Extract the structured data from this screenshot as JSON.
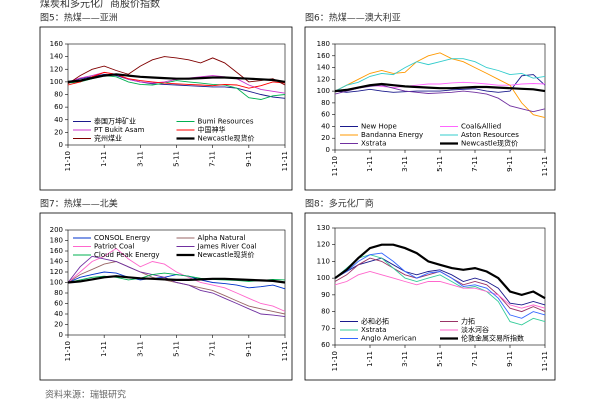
{
  "header": {
    "title": "煤炭和多元化厂商股价指数"
  },
  "footer": {
    "source": "资料来源：瑞银研究"
  },
  "chart_data": [
    {
      "type": "line",
      "title": "图5：热煤——亚洲",
      "legend": "lower",
      "categories": [
        "11-10",
        null,
        null,
        "1-11",
        null,
        null,
        "3-11",
        null,
        null,
        "5-11",
        null,
        null,
        "7-11",
        null,
        null,
        "9-11",
        null,
        null,
        "11-11"
      ],
      "ylim": [
        0,
        160
      ],
      "yticks": [
        0,
        20,
        40,
        60,
        80,
        100,
        120,
        140,
        160
      ],
      "series": [
        {
          "name": "泰国万坤矿业",
          "color": "#1a1a8c",
          "values": [
            100,
            105,
            108,
            112,
            110,
            104,
            100,
            97,
            96,
            95,
            94,
            93,
            92,
            92,
            90,
            85,
            80,
            76,
            74
          ]
        },
        {
          "name": "Bumi Resources",
          "color": "#00b050",
          "values": [
            98,
            100,
            105,
            110,
            108,
            100,
            96,
            95,
            98,
            102,
            100,
            98,
            96,
            95,
            90,
            75,
            72,
            78,
            80
          ]
        },
        {
          "name": "PT Bukit Asam",
          "color": "#cc33cc",
          "values": [
            100,
            106,
            110,
            115,
            112,
            104,
            100,
            98,
            100,
            104,
            106,
            108,
            110,
            108,
            105,
            95,
            88,
            85,
            82
          ]
        },
        {
          "name": "中国神华",
          "color": "#ff0000",
          "values": [
            95,
            100,
            108,
            115,
            112,
            105,
            102,
            100,
            98,
            97,
            96,
            95,
            94,
            96,
            95,
            90,
            94,
            100,
            98
          ]
        },
        {
          "name": "兖州煤业",
          "color": "#800000",
          "values": [
            97,
            110,
            120,
            125,
            118,
            112,
            125,
            135,
            140,
            138,
            135,
            130,
            138,
            130,
            115,
            100,
            102,
            105,
            95
          ]
        },
        {
          "name": "Newcastle现货价",
          "color": "#000000",
          "values": [
            100,
            102,
            106,
            110,
            112,
            110,
            108,
            107,
            106,
            105,
            105,
            106,
            107,
            107,
            106,
            105,
            104,
            103,
            100
          ]
        }
      ]
    },
    {
      "type": "line",
      "title": "图6：热煤——澳大利亚",
      "legend": "lower",
      "categories": [
        "11-10",
        null,
        null,
        "1-11",
        null,
        null,
        "3-11",
        null,
        null,
        "5-11",
        null,
        null,
        "7-11",
        null,
        null,
        "9-11",
        null,
        null,
        "11-11"
      ],
      "ylim": [
        0,
        180
      ],
      "yticks": [
        0,
        20,
        40,
        60,
        80,
        100,
        120,
        140,
        160,
        180
      ],
      "series": [
        {
          "name": "New Hope",
          "color": "#1a1a8c",
          "values": [
            100,
            98,
            100,
            103,
            100,
            98,
            99,
            100,
            100,
            100,
            102,
            103,
            104,
            100,
            98,
            100,
            126,
            128,
            110
          ]
        },
        {
          "name": "Coal&Allied",
          "color": "#ff66ff",
          "values": [
            100,
            102,
            105,
            110,
            108,
            106,
            108,
            110,
            112,
            112,
            114,
            115,
            114,
            112,
            110,
            110,
            112,
            113,
            112
          ]
        },
        {
          "name": "Bandanna Energy",
          "color": "#ff9900",
          "values": [
            100,
            110,
            120,
            130,
            135,
            130,
            132,
            150,
            160,
            165,
            155,
            150,
            140,
            130,
            120,
            110,
            80,
            60,
            55
          ]
        },
        {
          "name": "Aston Resources",
          "color": "#33cccc",
          "values": [
            100,
            110,
            115,
            125,
            130,
            128,
            140,
            150,
            145,
            150,
            155,
            155,
            150,
            140,
            135,
            128,
            130,
            122,
            125
          ]
        },
        {
          "name": "Xstrata",
          "color": "#7030a0",
          "values": [
            95,
            100,
            105,
            108,
            110,
            105,
            100,
            98,
            96,
            97,
            98,
            100,
            98,
            95,
            88,
            75,
            70,
            65,
            70
          ]
        },
        {
          "name": "Newcastle现货价",
          "color": "#000000",
          "values": [
            100,
            102,
            106,
            110,
            112,
            110,
            108,
            107,
            106,
            105,
            105,
            106,
            107,
            107,
            106,
            105,
            104,
            103,
            100
          ]
        }
      ]
    },
    {
      "type": "line",
      "title": "图7：热煤——北美",
      "legend": "upper",
      "categories": [
        "11-10",
        null,
        null,
        "1-11",
        null,
        null,
        "3-11",
        null,
        null,
        "5-11",
        null,
        null,
        "7-11",
        null,
        null,
        "9-11",
        null,
        null,
        "11-11"
      ],
      "ylim": [
        0,
        200
      ],
      "yticks": [
        0,
        20,
        40,
        60,
        80,
        100,
        120,
        140,
        160,
        180,
        200
      ],
      "series": [
        {
          "name": "CONSOL Energy",
          "color": "#0033cc",
          "values": [
            100,
            110,
            115,
            120,
            118,
            110,
            105,
            108,
            110,
            115,
            112,
            105,
            100,
            98,
            95,
            90,
            92,
            95,
            88
          ]
        },
        {
          "name": "Alpha Natural",
          "color": "#996666",
          "values": [
            100,
            115,
            125,
            135,
            140,
            130,
            120,
            110,
            105,
            100,
            95,
            90,
            85,
            75,
            65,
            55,
            50,
            45,
            40
          ]
        },
        {
          "name": "Patriot Coal",
          "color": "#ff66cc",
          "values": [
            100,
            120,
            140,
            150,
            165,
            145,
            130,
            140,
            135,
            120,
            110,
            100,
            95,
            90,
            80,
            70,
            60,
            55,
            45
          ]
        },
        {
          "name": "James River Coal",
          "color": "#7030a0",
          "values": [
            100,
            130,
            150,
            145,
            140,
            130,
            120,
            115,
            110,
            100,
            95,
            85,
            80,
            70,
            60,
            50,
            40,
            38,
            35
          ]
        },
        {
          "name": "Cloud Peak Energy",
          "color": "#00b050",
          "values": [
            100,
            105,
            110,
            112,
            110,
            105,
            108,
            115,
            118,
            115,
            112,
            108,
            106,
            105,
            104,
            102,
            104,
            106,
            105
          ]
        },
        {
          "name": "Newcastle现货价",
          "color": "#000000",
          "values": [
            100,
            102,
            106,
            110,
            112,
            110,
            108,
            107,
            106,
            105,
            105,
            106,
            107,
            107,
            106,
            105,
            104,
            103,
            100
          ]
        }
      ]
    },
    {
      "type": "line",
      "title": "图8：多元化厂商",
      "legend": "lower",
      "categories": [
        "11-10",
        null,
        null,
        "1-11",
        null,
        null,
        "3-11",
        null,
        null,
        "5-11",
        null,
        null,
        "7-11",
        null,
        null,
        "9-11",
        null,
        null,
        "11-11"
      ],
      "ylim": [
        60,
        130
      ],
      "yticks": [
        60,
        70,
        80,
        90,
        100,
        110,
        120,
        130
      ],
      "series": [
        {
          "name": "必和必拓",
          "color": "#1a1a8c",
          "values": [
            100,
            104,
            108,
            110,
            112,
            108,
            104,
            102,
            104,
            105,
            102,
            98,
            100,
            98,
            94,
            85,
            84,
            86,
            84
          ]
        },
        {
          "name": "力拓",
          "color": "#993366",
          "values": [
            98,
            102,
            108,
            112,
            110,
            106,
            102,
            100,
            102,
            104,
            100,
            96,
            98,
            96,
            90,
            82,
            80,
            83,
            80
          ]
        },
        {
          "name": "Xstrata",
          "color": "#33cc99",
          "values": [
            100,
            106,
            112,
            114,
            112,
            106,
            100,
            98,
            100,
            102,
            98,
            94,
            95,
            92,
            86,
            74,
            72,
            76,
            74
          ]
        },
        {
          "name": "淡水河谷",
          "color": "#ff66cc",
          "values": [
            96,
            98,
            102,
            104,
            102,
            100,
            98,
            96,
            98,
            98,
            96,
            94,
            94,
            92,
            90,
            84,
            82,
            84,
            82
          ]
        },
        {
          "name": "Anglo American",
          "color": "#3366ff",
          "values": [
            100,
            104,
            110,
            114,
            115,
            110,
            104,
            100,
            103,
            104,
            100,
            95,
            96,
            94,
            88,
            78,
            76,
            80,
            78
          ]
        },
        {
          "name": "伦敦金属交易所指数",
          "color": "#000000",
          "values": [
            100,
            105,
            112,
            118,
            120,
            120,
            118,
            115,
            110,
            108,
            106,
            105,
            106,
            104,
            100,
            92,
            90,
            92,
            88
          ]
        }
      ]
    }
  ]
}
